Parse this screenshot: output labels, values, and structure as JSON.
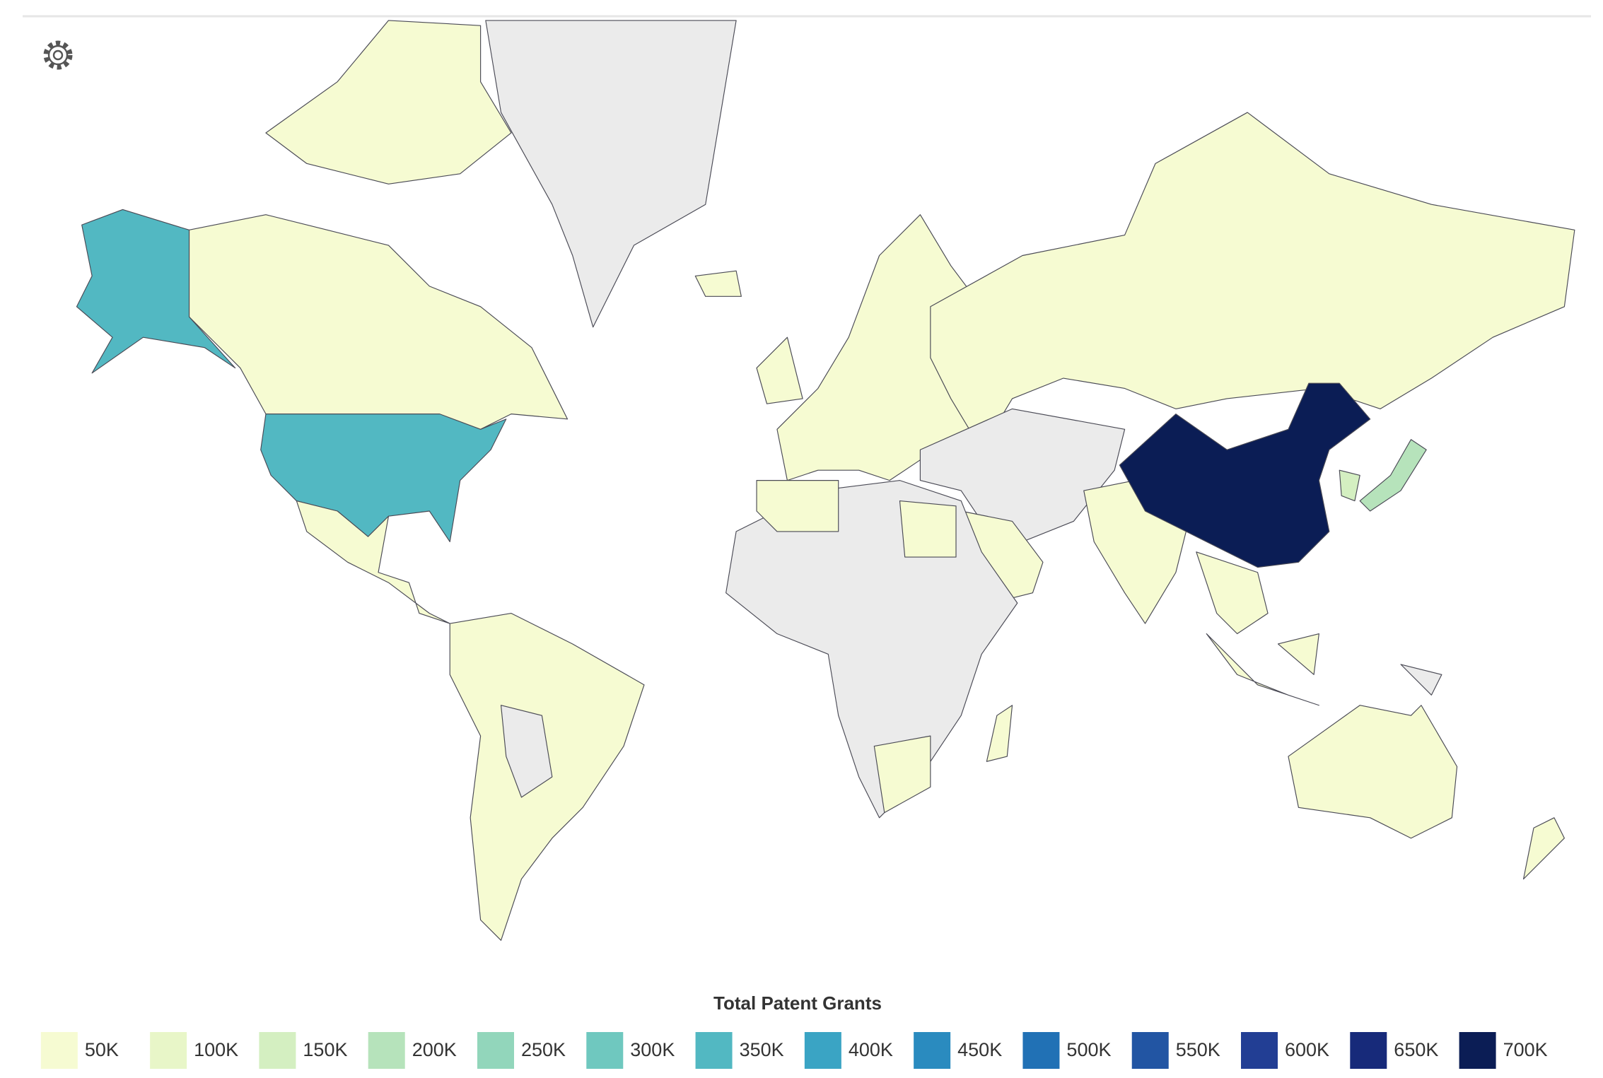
{
  "chart_data": {
    "type": "choropleth",
    "legend_title": "Total Patent Grants",
    "bins": [
      {
        "value": 50000,
        "label": "50K",
        "color": "#f6fbd2"
      },
      {
        "value": 100000,
        "label": "100K",
        "color": "#e8f6c8"
      },
      {
        "value": 150000,
        "label": "150K",
        "color": "#d4efc1"
      },
      {
        "value": 200000,
        "label": "200K",
        "color": "#b6e3bb"
      },
      {
        "value": 250000,
        "label": "250K",
        "color": "#92d6bb"
      },
      {
        "value": 300000,
        "label": "300K",
        "color": "#6fc8bf"
      },
      {
        "value": 350000,
        "label": "350K",
        "color": "#52b8c2"
      },
      {
        "value": 400000,
        "label": "400K",
        "color": "#3aa4c4"
      },
      {
        "value": 450000,
        "label": "450K",
        "color": "#2a8bbf"
      },
      {
        "value": 500000,
        "label": "500K",
        "color": "#2171b5"
      },
      {
        "value": 550000,
        "label": "550K",
        "color": "#2255a3"
      },
      {
        "value": 600000,
        "label": "600K",
        "color": "#223e94"
      },
      {
        "value": 650000,
        "label": "650K",
        "color": "#172a7a"
      },
      {
        "value": 700000,
        "label": "700K",
        "color": "#0b1d55"
      }
    ]
  }
}
